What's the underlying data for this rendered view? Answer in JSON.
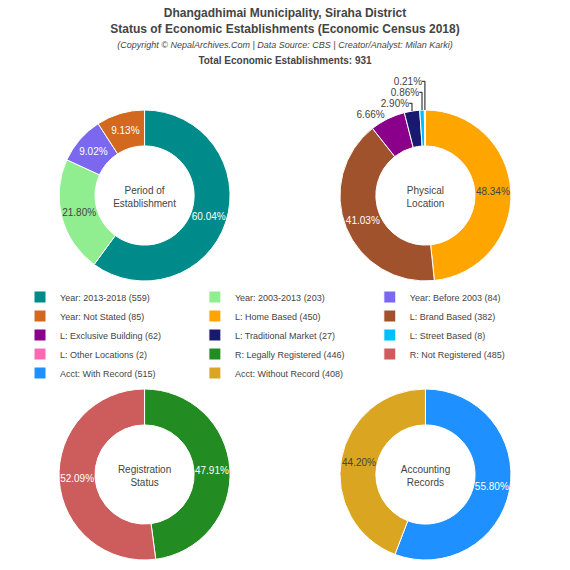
{
  "title": "Dhangadhimai Municipality, Siraha District\nStatus of Economic Establishments (Economic Census 2018)",
  "subtitle": "(Copyright © NepalArchives.Com | Data Source: CBS | Creator/Analyst: Milan Karki)\nTotal Economic Establishments: 931",
  "legend": "center",
  "chart_data": [
    {
      "type": "pie",
      "title": "Period of\nEstablishment",
      "categories": [
        "Year: 2013-2018 (559)",
        "Year: 2003-2013 (203)",
        "Year: Before 2003 (84)",
        "Year: Not Stated (85)"
      ],
      "values": [
        60.04,
        21.8,
        9.02,
        9.13
      ],
      "value_labels": [
        "60.04%",
        "21.80%",
        "9.02%",
        "9.13%"
      ],
      "colors": [
        "#008B8B",
        "#90EE90",
        "#7B68EE",
        "#D2691E"
      ],
      "data_labels": true
    },
    {
      "type": "pie",
      "title": "Physical\nLocation",
      "categories": [
        "L: Home Based (450)",
        "L: Brand Based (382)",
        "L: Exclusive Building (62)",
        "L: Traditional Market (27)",
        "L: Street Based (8)",
        "L: Other Locations (2)"
      ],
      "values": [
        48.34,
        41.03,
        6.66,
        2.9,
        0.86,
        0.21
      ],
      "value_labels": [
        "48.34%",
        "41.03%",
        "6.66%",
        "2.90%",
        "0.86%",
        "0.21%"
      ],
      "colors": [
        "#FFA500",
        "#A0522D",
        "#8B008B",
        "#191970",
        "#00BFFF",
        "#FF69B4"
      ],
      "data_labels": true
    },
    {
      "type": "pie",
      "title": "Registration\nStatus",
      "categories": [
        "R: Legally Registered (446)",
        "R: Not Registered (485)"
      ],
      "values": [
        47.91,
        52.09
      ],
      "value_labels": [
        "47.91%",
        "52.09%"
      ],
      "colors": [
        "#228B22",
        "#CD5C5C"
      ],
      "data_labels": true
    },
    {
      "type": "pie",
      "title": "Accounting\nRecords",
      "categories": [
        "Acct: With Record (515)",
        "Acct: Without Record (408)"
      ],
      "values": [
        55.8,
        44.2
      ],
      "value_labels": [
        "55.80%",
        "44.20%"
      ],
      "colors": [
        "#1E90FF",
        "#DAA520"
      ],
      "data_labels": true
    }
  ]
}
